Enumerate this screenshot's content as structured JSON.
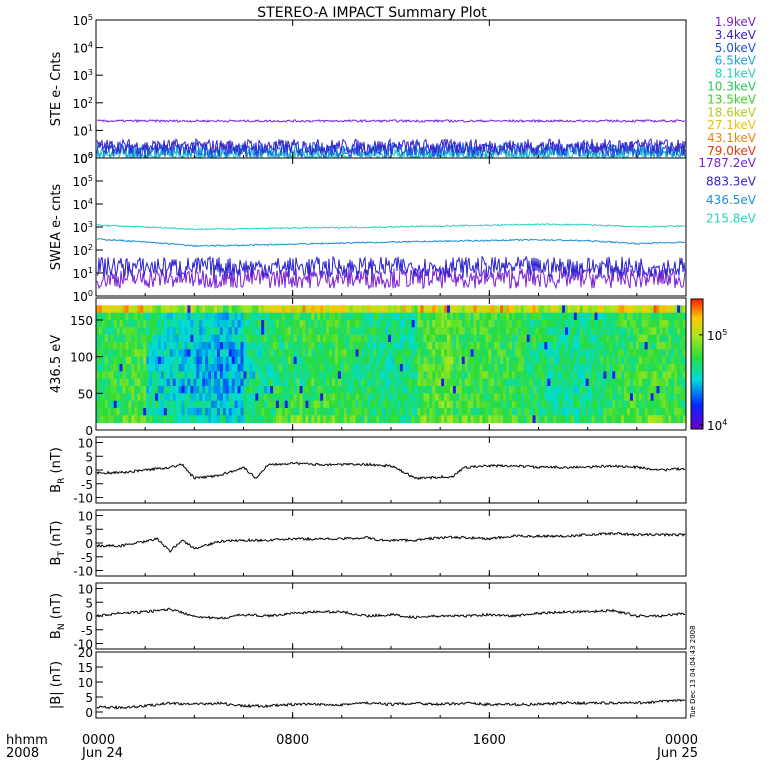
{
  "title": "STEREO-A IMPACT Summary Plot",
  "footer": {
    "hhmm_label": "hhmm",
    "year_label": "2008"
  },
  "stamp_text": "Tue Dec 13 04:04:43 2008",
  "chart_data": {
    "type": "line",
    "x_unit": "hours since 2008-06-24 00:00",
    "x_range": [
      0,
      24
    ],
    "x_ticks": [
      {
        "value": 0,
        "label": "0000",
        "sublabel": "Jun 24"
      },
      {
        "value": 8,
        "label": "0800",
        "sublabel": ""
      },
      {
        "value": 16,
        "label": "1600",
        "sublabel": ""
      },
      {
        "value": 24,
        "label": "0000",
        "sublabel": "Jun 25"
      }
    ],
    "panels": [
      {
        "id": "ste",
        "ylabel": "STE e- Cnts",
        "scale": "log",
        "ylim": [
          1,
          100000
        ],
        "y_ticks": [
          "10^0",
          "10^1",
          "10^2",
          "10^3",
          "10^4",
          "10^5"
        ],
        "legend": [
          {
            "label": "1.9keV",
            "color": "#7b1fd6"
          },
          {
            "label": "3.4keV",
            "color": "#3a22c9"
          },
          {
            "label": "5.0keV",
            "color": "#1f4fe0"
          },
          {
            "label": "6.5keV",
            "color": "#1aa3d9"
          },
          {
            "label": "8.1keV",
            "color": "#22d3c3"
          },
          {
            "label": "10.3keV",
            "color": "#22c95a"
          },
          {
            "label": "13.5keV",
            "color": "#36d41e"
          },
          {
            "label": "18.6keV",
            "color": "#a8d21a"
          },
          {
            "label": "27.1keV",
            "color": "#e8c20c"
          },
          {
            "label": "43.1keV",
            "color": "#e8860c"
          },
          {
            "label": "79.0keV",
            "color": "#e03a10"
          }
        ],
        "series": [
          {
            "name": "1.9keV",
            "level": 22
          },
          {
            "name": "3.4keV",
            "level": 2.6
          },
          {
            "name": "5.0keV",
            "level": 2.0
          },
          {
            "name": "6.5keV",
            "level": 1.6
          },
          {
            "name": "8.1keV",
            "level": 1.3
          }
        ]
      },
      {
        "id": "swea",
        "ylabel": "SWEA e- cnts",
        "scale": "log",
        "ylim": [
          1,
          1000000
        ],
        "y_ticks": [
          "10^0",
          "10^1",
          "10^2",
          "10^3",
          "10^4",
          "10^5",
          "10^6"
        ],
        "legend": [
          {
            "label": "1787.2eV",
            "color": "#7b1fd6"
          },
          {
            "label": "883.3eV",
            "color": "#2a22d0"
          },
          {
            "label": "436.5eV",
            "color": "#1a8fd9"
          },
          {
            "label": "215.8eV",
            "color": "#22d3c3"
          }
        ],
        "series": [
          {
            "name": "215.8eV",
            "values_x": [
              0,
              2,
              4,
              6,
              8,
              10,
              12,
              14,
              16,
              18,
              20,
              22,
              24
            ],
            "values": [
              1200,
              1000,
              800,
              850,
              900,
              950,
              1000,
              1100,
              1200,
              1300,
              1250,
              1000,
              1100
            ]
          },
          {
            "name": "436.5eV",
            "values_x": [
              0,
              2,
              4,
              6,
              8,
              10,
              12,
              14,
              16,
              18,
              20,
              22,
              24
            ],
            "values": [
              300,
              220,
              150,
              160,
              180,
              200,
              220,
              240,
              260,
              280,
              250,
              190,
              220
            ]
          },
          {
            "name": "883.3eV",
            "level": 18
          },
          {
            "name": "1787.2eV",
            "level": 6
          }
        ]
      },
      {
        "id": "pad",
        "type": "heatmap",
        "ylabel": "436.5 eV",
        "ylim": [
          0,
          180
        ],
        "y_ticks": [
          0,
          50,
          100,
          150
        ],
        "colorbar": {
          "scale": "log",
          "range": [
            9000,
            250000
          ],
          "tick_labels": [
            "10^4",
            "10^5"
          ]
        }
      },
      {
        "id": "br",
        "ylabel": "B_R (nT)",
        "ylim": [
          -12,
          12
        ],
        "y_ticks": [
          -10,
          -5,
          0,
          5,
          10
        ],
        "x": [
          0,
          1,
          2,
          3,
          3.5,
          4,
          5,
          6,
          6.5,
          7,
          8,
          9,
          10,
          11,
          12,
          13,
          13.2,
          14,
          14.5,
          15,
          16,
          17,
          18,
          19,
          20,
          21,
          22,
          23,
          24
        ],
        "values": [
          -1,
          -1,
          0,
          1,
          2,
          -3,
          -2,
          1,
          -3,
          2,
          2.5,
          2,
          2,
          2,
          1.5,
          -3,
          -3,
          -2.5,
          -2.5,
          1,
          1.5,
          1.5,
          1,
          1,
          1,
          1.5,
          1,
          0,
          0.5
        ]
      },
      {
        "id": "bt",
        "ylabel": "B_T (nT)",
        "ylim": [
          -12,
          12
        ],
        "y_ticks": [
          -10,
          -5,
          0,
          5,
          10
        ],
        "x": [
          0,
          1,
          2,
          2.5,
          3,
          3.5,
          4,
          5,
          6,
          7,
          8,
          9,
          10,
          11,
          11.5,
          12,
          13,
          14,
          15,
          16,
          17,
          18,
          19,
          20,
          21,
          22,
          23,
          24
        ],
        "values": [
          -1,
          -1,
          0.5,
          1.5,
          -3,
          1,
          -2,
          0.5,
          1,
          1,
          1.5,
          1.5,
          1.5,
          2,
          1,
          1,
          1,
          2,
          2,
          1.5,
          2.5,
          2.5,
          2.5,
          3,
          3.5,
          3,
          3,
          3
        ]
      },
      {
        "id": "bn",
        "ylabel": "B_N (nT)",
        "ylim": [
          -12,
          12
        ],
        "y_ticks": [
          -10,
          -5,
          0,
          5,
          10
        ],
        "x": [
          0,
          1,
          2,
          3,
          4,
          5,
          6,
          7,
          8,
          9,
          10,
          11,
          12,
          13,
          14,
          15,
          16,
          17,
          18,
          19,
          20,
          21,
          22,
          23,
          24
        ],
        "values": [
          0,
          1,
          1.5,
          2.5,
          0,
          -1,
          0.5,
          0,
          1,
          1.5,
          1.5,
          0,
          0.5,
          -0.5,
          0,
          0,
          0.5,
          0,
          1,
          1.5,
          1.5,
          2,
          0,
          0,
          1
        ]
      },
      {
        "id": "bmag",
        "ylabel": "|B| (nT)",
        "ylim": [
          -2,
          20
        ],
        "y_ticks": [
          0,
          5,
          10,
          15,
          20
        ],
        "x": [
          0,
          1,
          2,
          3,
          4,
          5,
          6,
          7,
          8,
          9,
          10,
          11,
          12,
          13,
          14,
          15,
          16,
          17,
          18,
          19,
          20,
          21,
          22,
          23,
          24
        ],
        "values": [
          1.5,
          1.5,
          2,
          3,
          2.5,
          3,
          2,
          2,
          2.5,
          2.5,
          2.5,
          3,
          2.5,
          3,
          2.5,
          3,
          2.5,
          2.5,
          2.5,
          3,
          3,
          3,
          3,
          3.5,
          4
        ]
      }
    ]
  }
}
